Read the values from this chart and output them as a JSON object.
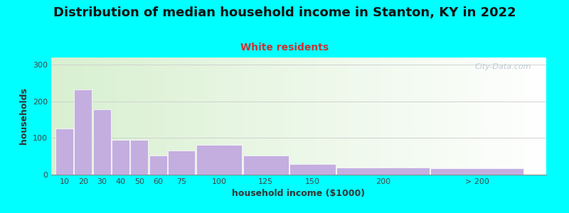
{
  "title": "Distribution of median household income in Stanton, KY in 2022",
  "subtitle": "White residents",
  "xlabel": "household income ($1000)",
  "ylabel": "households",
  "background_color": "#00ffff",
  "bar_color": "#c4aee0",
  "categories": [
    "10",
    "20",
    "30",
    "40",
    "50",
    "60",
    "75",
    "100",
    "125",
    "150",
    "200",
    "> 200"
  ],
  "bin_lefts": [
    0,
    10,
    20,
    30,
    40,
    50,
    60,
    75,
    100,
    125,
    150,
    200
  ],
  "bin_widths": [
    10,
    10,
    10,
    10,
    10,
    10,
    15,
    25,
    25,
    25,
    50,
    50
  ],
  "values": [
    127,
    232,
    178,
    95,
    95,
    53,
    65,
    82,
    52,
    30,
    20,
    18
  ],
  "ylim": [
    0,
    320
  ],
  "yticks": [
    0,
    100,
    200,
    300
  ],
  "xlim_left": -2,
  "xlim_right": 262,
  "title_fontsize": 13,
  "subtitle_fontsize": 10,
  "axis_label_fontsize": 9,
  "tick_fontsize": 8,
  "watermark": "City-Data.com"
}
